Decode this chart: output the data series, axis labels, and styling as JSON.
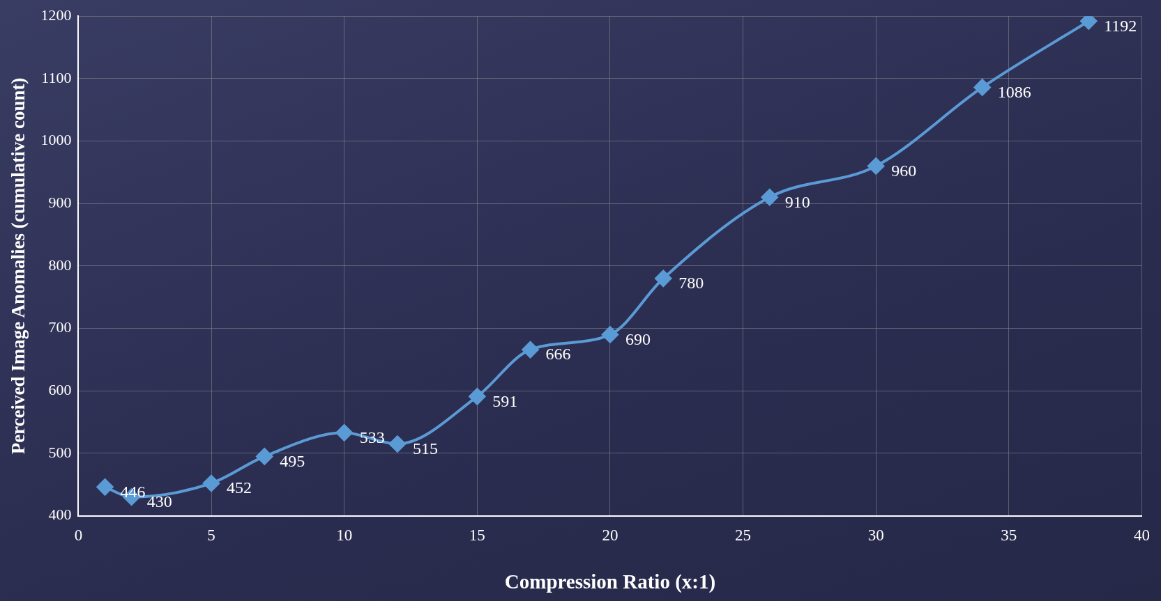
{
  "chart_data": {
    "type": "line",
    "xlabel": "Compression Ratio (x:1)",
    "ylabel": "Perceived Image Anomalies (cumulative count)",
    "x": [
      1,
      2,
      5,
      7,
      10,
      12,
      15,
      17,
      20,
      22,
      26,
      30,
      34,
      38
    ],
    "series": [
      {
        "color": "#5b9bd5",
        "values": [
          446,
          430,
          452,
          495,
          533,
          515,
          591,
          666,
          690,
          780,
          910,
          960,
          1086,
          1192
        ]
      }
    ],
    "xlim": [
      0,
      40
    ],
    "xticks": [
      0,
      5,
      10,
      15,
      20,
      25,
      30,
      35,
      40
    ],
    "ylim": [
      400,
      1200
    ],
    "yticks": [
      400,
      500,
      600,
      700,
      800,
      900,
      1000,
      1100,
      1200
    ],
    "grid": true,
    "legend": false,
    "marker": "diamond",
    "line_style": "solid",
    "data_labels": true
  }
}
